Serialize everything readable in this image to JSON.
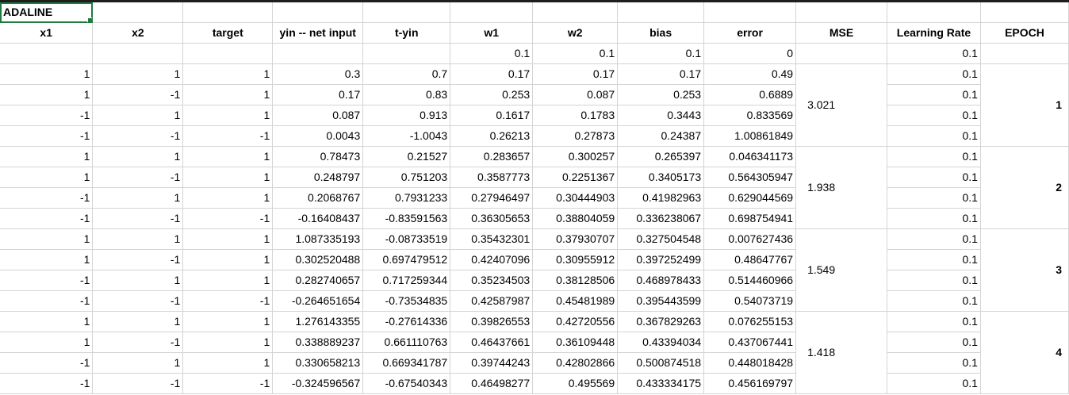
{
  "sheet_title": "ADALINE",
  "headers": [
    "x1",
    "x2",
    "target",
    "yin -- net input",
    "t-yin",
    "w1",
    "w2",
    "bias",
    "error",
    "MSE",
    "Learning Rate",
    "EPOCH"
  ],
  "init_row": [
    "",
    "",
    "",
    "",
    "",
    "0.1",
    "0.1",
    "0.1",
    "0",
    "",
    "0.1",
    ""
  ],
  "rows": [
    [
      "1",
      "1",
      "1",
      "0.3",
      "0.7",
      "0.17",
      "0.17",
      "0.17",
      "0.49",
      "0.1"
    ],
    [
      "1",
      "-1",
      "1",
      "0.17",
      "0.83",
      "0.253",
      "0.087",
      "0.253",
      "0.6889",
      "0.1"
    ],
    [
      "-1",
      "1",
      "1",
      "0.087",
      "0.913",
      "0.1617",
      "0.1783",
      "0.3443",
      "0.833569",
      "0.1"
    ],
    [
      "-1",
      "-1",
      "-1",
      "0.0043",
      "-1.0043",
      "0.26213",
      "0.27873",
      "0.24387",
      "1.00861849",
      "0.1"
    ],
    [
      "1",
      "1",
      "1",
      "0.78473",
      "0.21527",
      "0.283657",
      "0.300257",
      "0.265397",
      "0.046341173",
      "0.1"
    ],
    [
      "1",
      "-1",
      "1",
      "0.248797",
      "0.751203",
      "0.3587773",
      "0.2251367",
      "0.3405173",
      "0.564305947",
      "0.1"
    ],
    [
      "-1",
      "1",
      "1",
      "0.2068767",
      "0.7931233",
      "0.27946497",
      "0.30444903",
      "0.41982963",
      "0.629044569",
      "0.1"
    ],
    [
      "-1",
      "-1",
      "-1",
      "-0.16408437",
      "-0.83591563",
      "0.36305653",
      "0.38804059",
      "0.336238067",
      "0.698754941",
      "0.1"
    ],
    [
      "1",
      "1",
      "1",
      "1.087335193",
      "-0.08733519",
      "0.35432301",
      "0.37930707",
      "0.327504548",
      "0.007627436",
      "0.1"
    ],
    [
      "1",
      "-1",
      "1",
      "0.302520488",
      "0.697479512",
      "0.42407096",
      "0.30955912",
      "0.397252499",
      "0.48647767",
      "0.1"
    ],
    [
      "-1",
      "1",
      "1",
      "0.282740657",
      "0.717259344",
      "0.35234503",
      "0.38128506",
      "0.468978433",
      "0.514460966",
      "0.1"
    ],
    [
      "-1",
      "-1",
      "-1",
      "-0.264651654",
      "-0.73534835",
      "0.42587987",
      "0.45481989",
      "0.395443599",
      "0.54073719",
      "0.1"
    ],
    [
      "1",
      "1",
      "1",
      "1.276143355",
      "-0.27614336",
      "0.39826553",
      "0.42720556",
      "0.367829263",
      "0.076255153",
      "0.1"
    ],
    [
      "1",
      "-1",
      "1",
      "0.338889237",
      "0.661110763",
      "0.46437661",
      "0.36109448",
      "0.43394034",
      "0.437067441",
      "0.1"
    ],
    [
      "-1",
      "1",
      "1",
      "0.330658213",
      "0.669341787",
      "0.39744243",
      "0.42802866",
      "0.500874518",
      "0.448018428",
      "0.1"
    ],
    [
      "-1",
      "-1",
      "-1",
      "-0.324596567",
      "-0.67540343",
      "0.46498277",
      "0.495569",
      "0.433334175",
      "0.456169797",
      "0.1"
    ]
  ],
  "epochs": [
    {
      "mse": "3.021",
      "epoch": "1"
    },
    {
      "mse": "1.938",
      "epoch": "2"
    },
    {
      "mse": "1.549",
      "epoch": "3"
    },
    {
      "mse": "1.418",
      "epoch": "4"
    }
  ]
}
